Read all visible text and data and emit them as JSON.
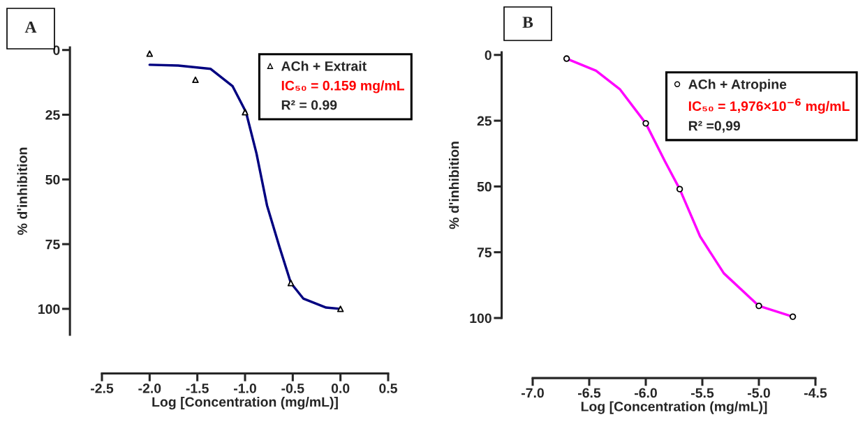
{
  "chart_data": [
    {
      "type": "scatter",
      "title": "A",
      "xlabel": "Log [Concentration (mg/mL)]",
      "ylabel": "% d'inhibition",
      "xlim": [
        -2.5,
        0.5
      ],
      "xticks": [
        {
          "value": -2.5,
          "label": "-2.5"
        },
        {
          "value": -2.0,
          "label": "-2.0"
        },
        {
          "value": -1.5,
          "label": "-1.5"
        },
        {
          "value": -1.0,
          "label": "-1.0"
        },
        {
          "value": -0.5,
          "label": "-0.5"
        },
        {
          "value": 0.0,
          "label": "0.0"
        },
        {
          "value": 0.5,
          "label": "0.5"
        }
      ],
      "ylim": [
        110,
        -1
      ],
      "yticks": [
        0,
        25,
        50,
        75,
        100
      ],
      "grid": false,
      "legend": "top right",
      "series": [
        {
          "name": "ACh + Extrait",
          "marker": "triangle",
          "color": "#000000",
          "x": [
            -2.0,
            -1.52,
            -1.0,
            -0.52,
            0.0
          ],
          "values": [
            1.4,
            11.5,
            24,
            90,
            100
          ]
        },
        {
          "type": "line",
          "marker": "none",
          "color": "#000080",
          "x": [
            -2.0,
            -1.7,
            -1.36,
            -1.13,
            -0.99,
            -0.88,
            -0.77,
            -0.64,
            -0.52,
            -0.39,
            -0.15,
            0.0
          ],
          "values": [
            5.7,
            6,
            7.3,
            14,
            24,
            40,
            60,
            76,
            90,
            96,
            99.5,
            100
          ]
        }
      ],
      "annotations": [
        "IC₅₀ = 0.159 mg/mL",
        "R² = 0.99"
      ]
    },
    {
      "type": "scatter",
      "title": "B",
      "xlabel": "Log [Concentration (mg/mL)]",
      "ylabel": "% d'inhibition",
      "xlim": [
        -7.0,
        -4.5
      ],
      "xticks": [
        {
          "value": -7.0,
          "label": "-7.0"
        },
        {
          "value": -6.5,
          "label": "-6.5"
        },
        {
          "value": -6.0,
          "label": "-6.0"
        },
        {
          "value": -5.5,
          "label": "-5.5"
        },
        {
          "value": -5.0,
          "label": "-5.0"
        },
        {
          "value": -4.5,
          "label": "-4.5"
        }
      ],
      "ylim": [
        100,
        -1
      ],
      "yticks": [
        0,
        25,
        50,
        75,
        100
      ],
      "grid": false,
      "legend": "top right",
      "series": [
        {
          "name": "ACh + Atropine",
          "marker": "circle",
          "color": "#000000",
          "x": [
            -6.7,
            -6.0,
            -5.7,
            -5.0,
            -4.7
          ],
          "values": [
            1.4,
            26,
            51,
            95.4,
            99.5
          ]
        },
        {
          "type": "line",
          "marker": "none",
          "color": "#ff00ff",
          "x": [
            -6.7,
            -6.44,
            -6.23,
            -6.0,
            -5.83,
            -5.7,
            -5.52,
            -5.31,
            -5.0,
            -4.7
          ],
          "values": [
            1.4,
            6,
            13,
            26,
            40.5,
            51,
            69,
            83,
            95.4,
            99.5
          ]
        }
      ],
      "annotations": [
        "IC₅₀ = 1,976×10$^{−6}$ mg/mL",
        "R² =0,99"
      ]
    }
  ]
}
